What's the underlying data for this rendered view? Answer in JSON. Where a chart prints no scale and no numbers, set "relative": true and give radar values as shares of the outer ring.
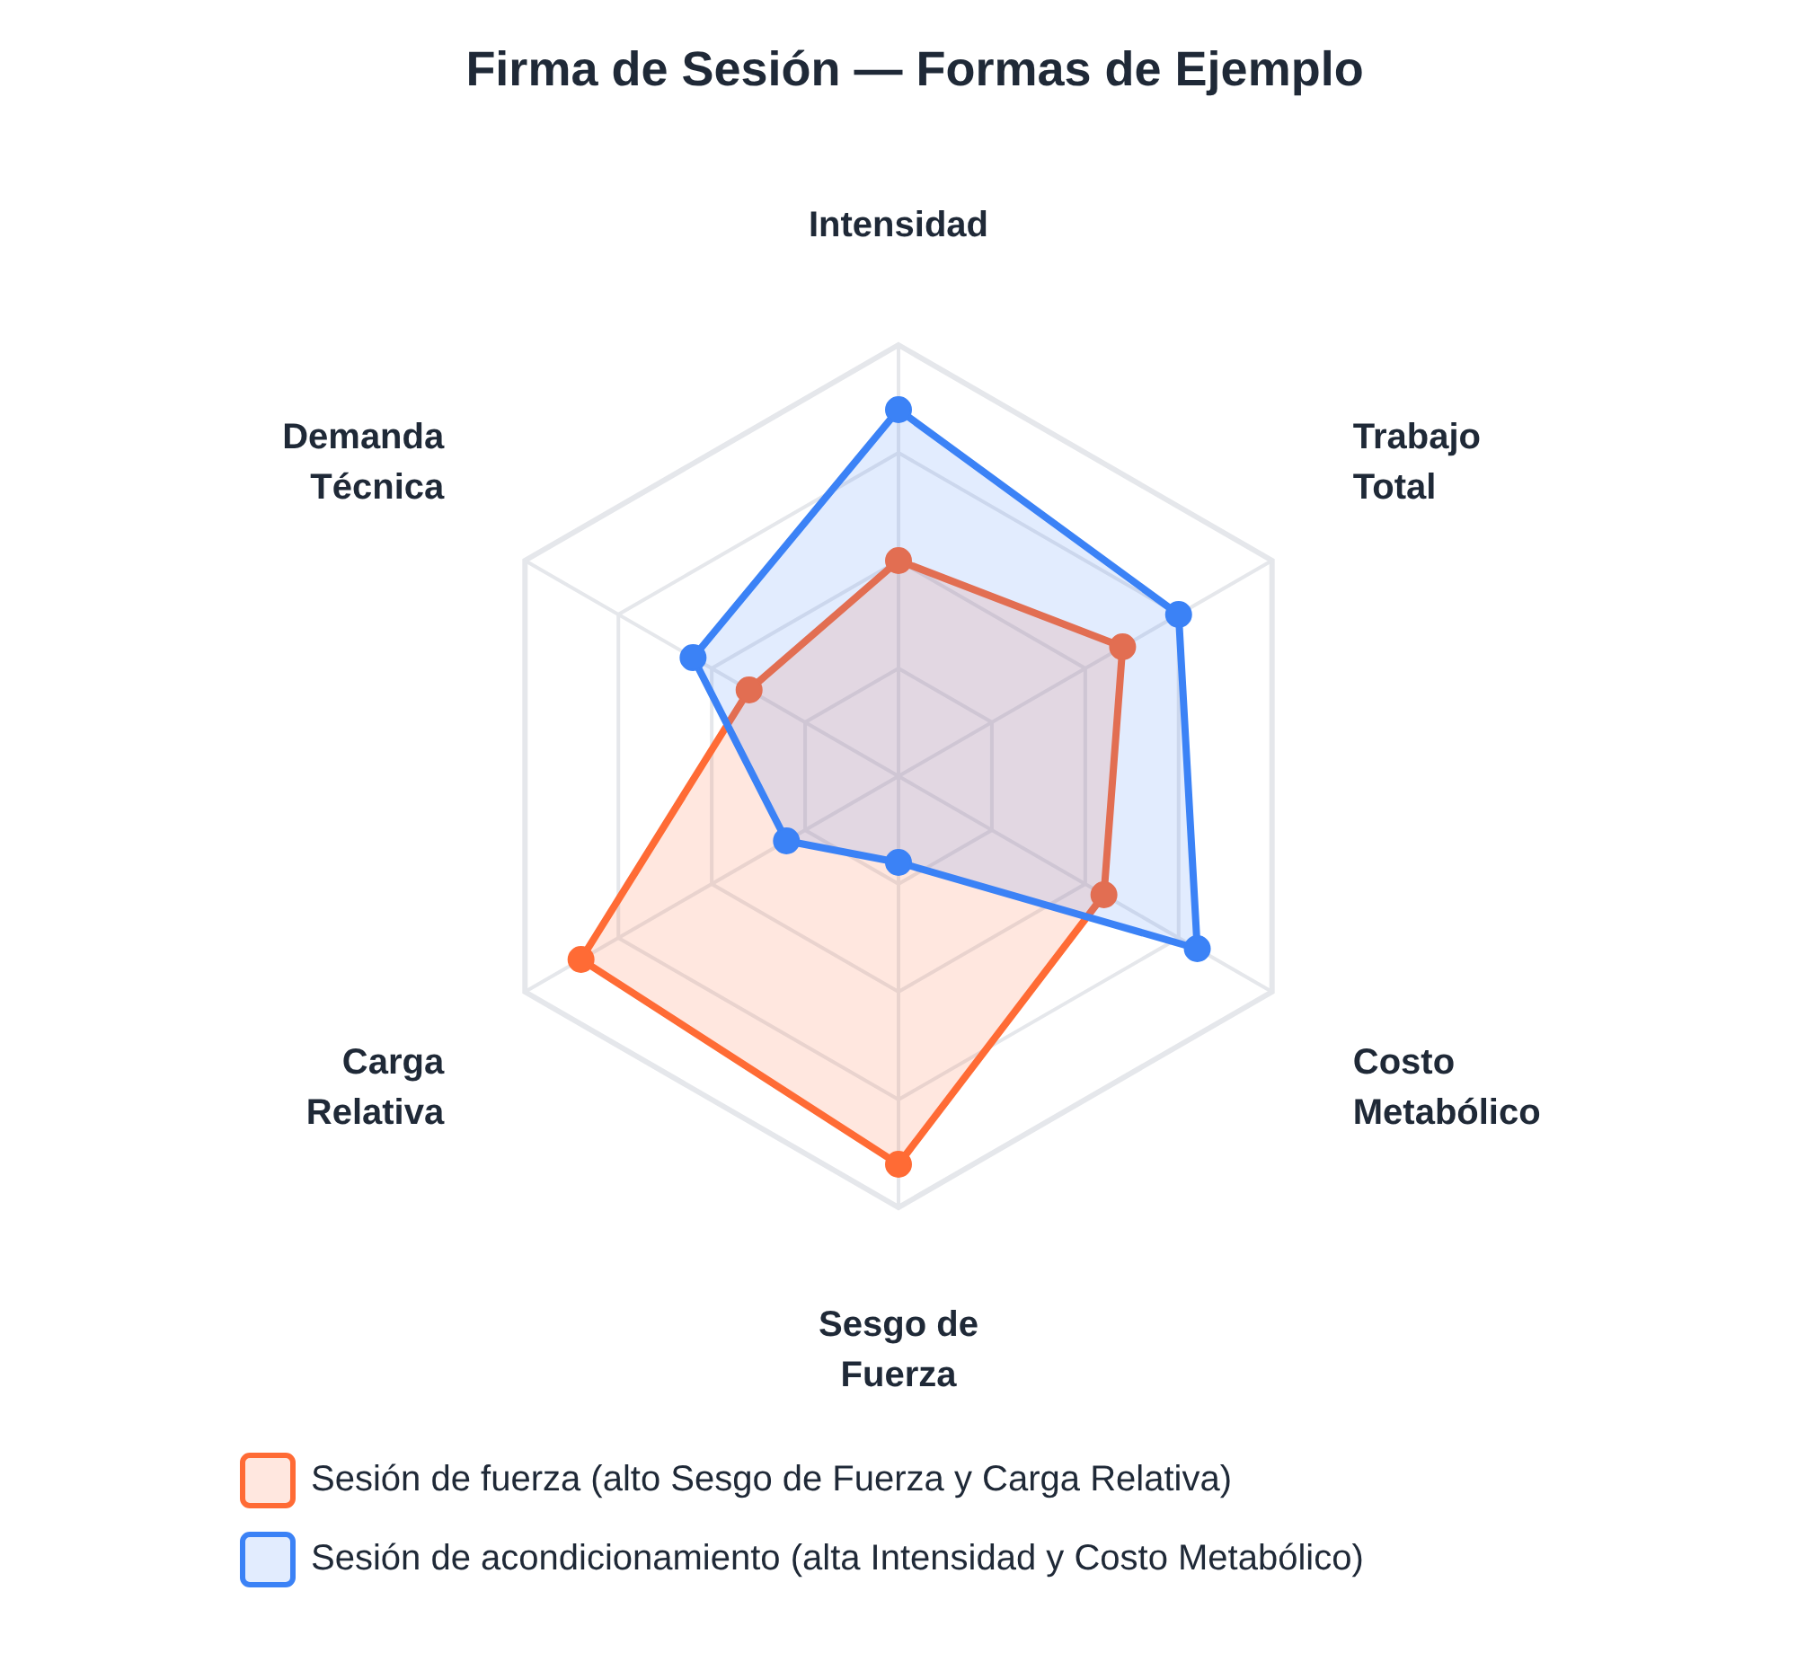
{
  "chart_data": {
    "type": "radar",
    "title": "Firma de Sesión — Formas de Ejemplo",
    "categories": [
      "Intensidad",
      "Trabajo Total",
      "Costo Metabólico",
      "Sesgo de Fuerza",
      "Carga Relativa",
      "Demanda Técnica"
    ],
    "relative": true,
    "series": [
      {
        "name": "Sesión de fuerza (alto Sesgo de Fuerza y Carga Relativa)",
        "color": "#ff6b35",
        "values": [
          0.5,
          0.6,
          0.55,
          0.9,
          0.85,
          0.4
        ]
      },
      {
        "name": "Sesión de acondicionamiento (alta Intensidad y Costo Metabólico)",
        "color": "#3b82f6",
        "values": [
          0.85,
          0.75,
          0.8,
          0.2,
          0.3,
          0.55
        ]
      }
    ],
    "legend": "bottom",
    "grid": true,
    "marker": "circle"
  }
}
